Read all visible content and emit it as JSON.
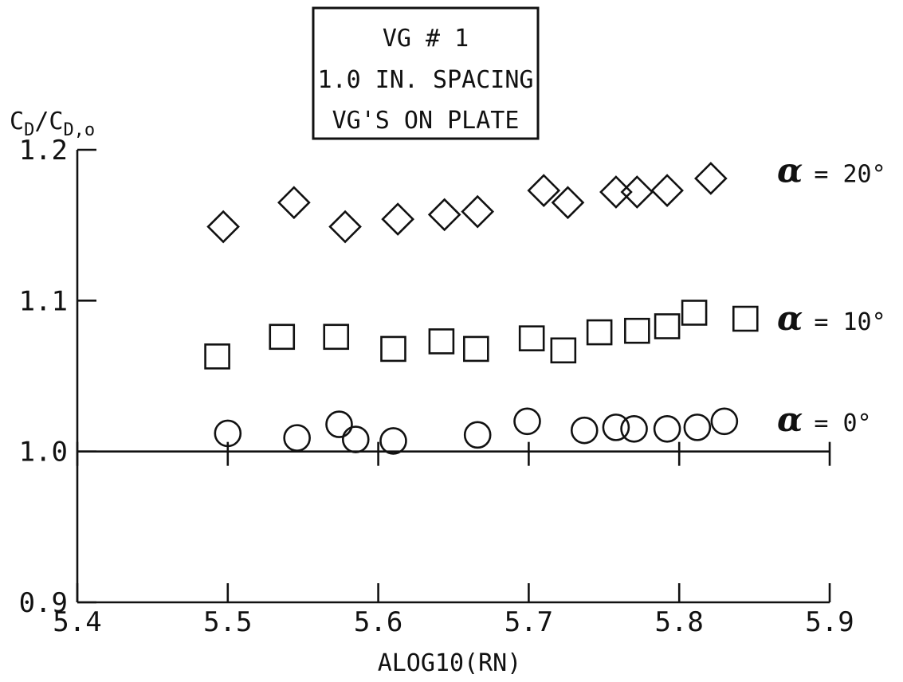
{
  "chart_data": {
    "type": "scatter",
    "title_lines": [
      "VG # 1",
      "1.0 IN. SPACING",
      "VG'S ON PLATE"
    ],
    "xlabel": "ALOG10(RN)",
    "ylabel": "C_D/C_D,o",
    "ylabel_parts": {
      "c1": "C",
      "sub1": "D",
      "mid": "/C",
      "sub2": "D,o"
    },
    "xlim": [
      5.4,
      5.9
    ],
    "ylim": [
      0.9,
      1.2
    ],
    "x_ticks": [
      "5.4",
      "5.5",
      "5.6",
      "5.7",
      "5.8",
      "5.9"
    ],
    "y_ticks": [
      "0.9",
      "1.0",
      "1.1",
      "1.2"
    ],
    "reference_line": 1.0,
    "grid": false,
    "series": [
      {
        "marker": "diamond",
        "label_alpha": "α",
        "label_rest": "= 20°",
        "label_y": 1.185,
        "points": [
          {
            "x": 5.497,
            "y": 1.149
          },
          {
            "x": 5.544,
            "y": 1.165
          },
          {
            "x": 5.578,
            "y": 1.149
          },
          {
            "x": 5.613,
            "y": 1.154
          },
          {
            "x": 5.644,
            "y": 1.157
          },
          {
            "x": 5.666,
            "y": 1.159
          },
          {
            "x": 5.71,
            "y": 1.173
          },
          {
            "x": 5.726,
            "y": 1.165
          },
          {
            "x": 5.758,
            "y": 1.172
          },
          {
            "x": 5.772,
            "y": 1.172
          },
          {
            "x": 5.792,
            "y": 1.173
          },
          {
            "x": 5.821,
            "y": 1.181
          }
        ]
      },
      {
        "marker": "square",
        "label_alpha": "α",
        "label_rest": "= 10°",
        "label_y": 1.087,
        "points": [
          {
            "x": 5.493,
            "y": 1.063
          },
          {
            "x": 5.536,
            "y": 1.076
          },
          {
            "x": 5.572,
            "y": 1.076
          },
          {
            "x": 5.61,
            "y": 1.068
          },
          {
            "x": 5.642,
            "y": 1.073
          },
          {
            "x": 5.665,
            "y": 1.068
          },
          {
            "x": 5.702,
            "y": 1.075
          },
          {
            "x": 5.723,
            "y": 1.067
          },
          {
            "x": 5.747,
            "y": 1.079
          },
          {
            "x": 5.772,
            "y": 1.08
          },
          {
            "x": 5.792,
            "y": 1.083
          },
          {
            "x": 5.81,
            "y": 1.092
          },
          {
            "x": 5.844,
            "y": 1.088
          }
        ]
      },
      {
        "marker": "circle",
        "label_alpha": "α",
        "label_rest": "= 0°",
        "label_y": 1.02,
        "points": [
          {
            "x": 5.5,
            "y": 1.012
          },
          {
            "x": 5.546,
            "y": 1.009
          },
          {
            "x": 5.574,
            "y": 1.018
          },
          {
            "x": 5.585,
            "y": 1.008
          },
          {
            "x": 5.61,
            "y": 1.007
          },
          {
            "x": 5.666,
            "y": 1.011
          },
          {
            "x": 5.699,
            "y": 1.02
          },
          {
            "x": 5.737,
            "y": 1.014
          },
          {
            "x": 5.758,
            "y": 1.016
          },
          {
            "x": 5.77,
            "y": 1.015
          },
          {
            "x": 5.792,
            "y": 1.015
          },
          {
            "x": 5.812,
            "y": 1.016
          },
          {
            "x": 5.83,
            "y": 1.02
          }
        ]
      }
    ]
  }
}
